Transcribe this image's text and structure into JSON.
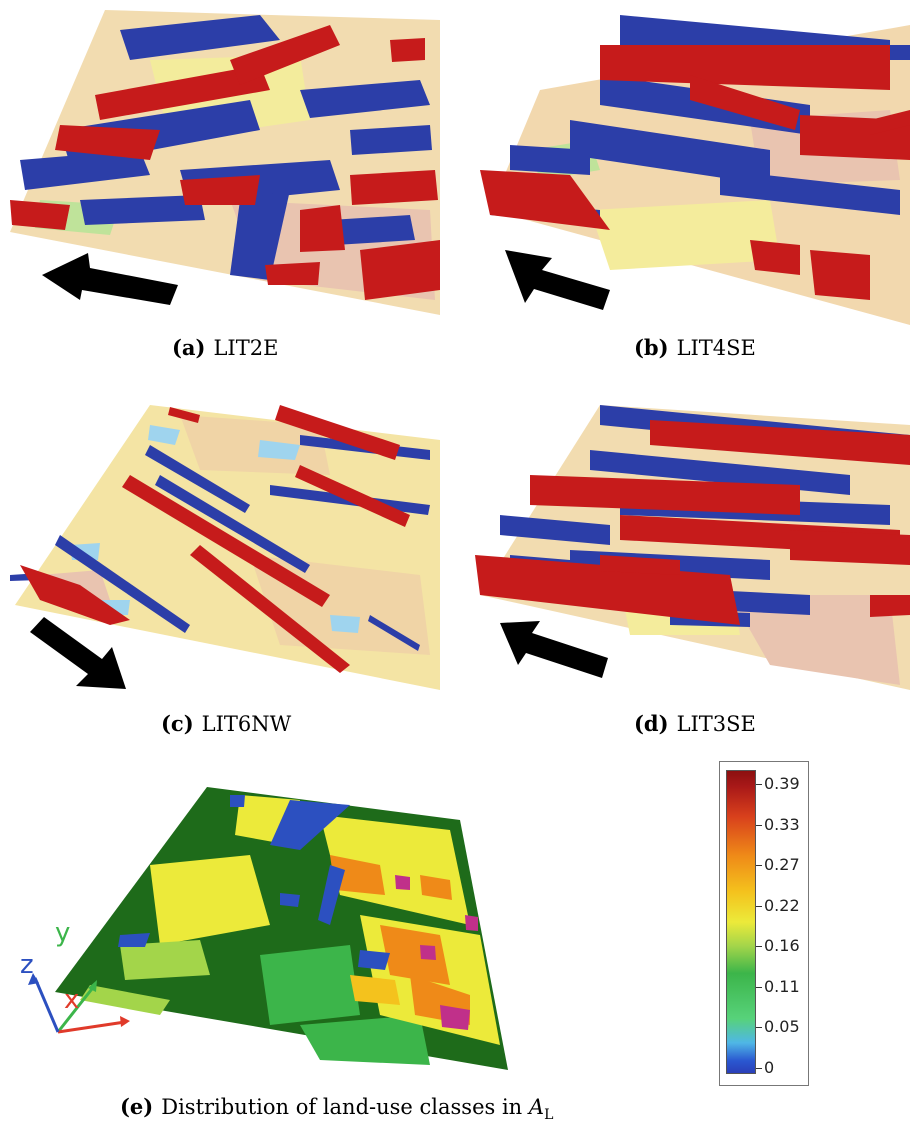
{
  "figure": {
    "panels": [
      {
        "id": "a",
        "label": "(a)",
        "name": "LIT2E"
      },
      {
        "id": "b",
        "label": "(b)",
        "name": "LIT4SE"
      },
      {
        "id": "c",
        "label": "(c)",
        "name": "LIT6NW"
      },
      {
        "id": "d",
        "label": "(d)",
        "name": "LIT3SE"
      }
    ],
    "panel_e": {
      "label": "(e)",
      "caption_text": "Distribution of land-use classes in",
      "symbol": "A",
      "subscript": "L"
    },
    "axes_triad": {
      "x": "x",
      "y": "y",
      "z": "z"
    },
    "colorbar": {
      "ticks": [
        "0.39",
        "0.33",
        "0.27",
        "0.22",
        "0.16",
        "0.11",
        "0.05",
        "0"
      ]
    },
    "colors": {
      "updraft": "#c61b1b",
      "downdraft": "#2c3ea8",
      "ground_tan": "#f0d6a6",
      "ground_yellow": "#f4ec9a",
      "ground_blue": "#9fd4ee",
      "forest": "#1e6b1a",
      "arrow": "#000000"
    }
  }
}
